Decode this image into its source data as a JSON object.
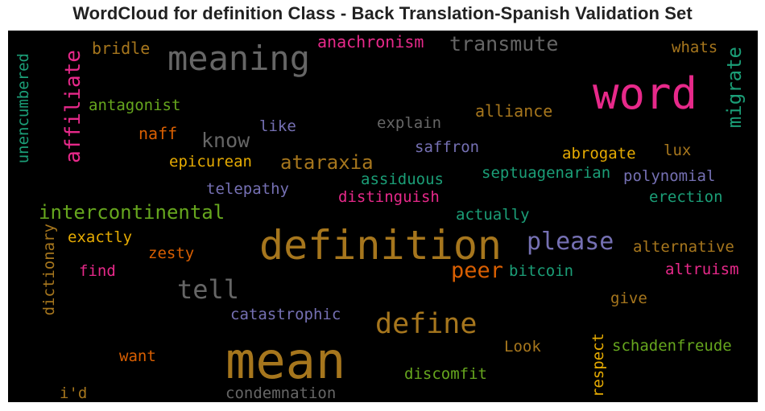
{
  "chart_data": {
    "type": "wordcloud",
    "title": "WordCloud for definition Class - Back Translation-Spanish Validation Set",
    "background": "#000000",
    "words": [
      {
        "text": "definition",
        "color": "#a6761d"
      },
      {
        "text": "mean",
        "color": "#a6761d"
      },
      {
        "text": "word",
        "color": "#e7298a"
      },
      {
        "text": "meaning",
        "color": "#666666"
      },
      {
        "text": "define",
        "color": "#a6761d"
      },
      {
        "text": "please",
        "color": "#7570b3"
      },
      {
        "text": "tell",
        "color": "#666666"
      },
      {
        "text": "transmute",
        "color": "#666666"
      },
      {
        "text": "intercontinental",
        "color": "#66a61e"
      },
      {
        "text": "ataraxia",
        "color": "#a6761d"
      },
      {
        "text": "know",
        "color": "#666666"
      },
      {
        "text": "affiliate",
        "color": "#e7298a"
      },
      {
        "text": "migrate",
        "color": "#1b9e77"
      },
      {
        "text": "peer",
        "color": "#d95f02"
      },
      {
        "text": "anachronism",
        "color": "#e7298a"
      },
      {
        "text": "bridle",
        "color": "#a6761d"
      },
      {
        "text": "whats",
        "color": "#a6761d"
      },
      {
        "text": "unencumbered",
        "color": "#1b9e77"
      },
      {
        "text": "antagonist",
        "color": "#66a61e"
      },
      {
        "text": "alliance",
        "color": "#a6761d"
      },
      {
        "text": "explain",
        "color": "#666666"
      },
      {
        "text": "like",
        "color": "#7570b3"
      },
      {
        "text": "naff",
        "color": "#d95f02"
      },
      {
        "text": "saffron",
        "color": "#7570b3"
      },
      {
        "text": "abrogate",
        "color": "#e6ab02"
      },
      {
        "text": "lux",
        "color": "#a6761d"
      },
      {
        "text": "epicurean",
        "color": "#e6ab02"
      },
      {
        "text": "assiduous",
        "color": "#1b9e77"
      },
      {
        "text": "septuagenarian",
        "color": "#1b9e77"
      },
      {
        "text": "polynomial",
        "color": "#7570b3"
      },
      {
        "text": "telepathy",
        "color": "#7570b3"
      },
      {
        "text": "distinguish",
        "color": "#e7298a"
      },
      {
        "text": "erection",
        "color": "#1b9e77"
      },
      {
        "text": "actually",
        "color": "#1b9e77"
      },
      {
        "text": "exactly",
        "color": "#e6ab02"
      },
      {
        "text": "dictionary",
        "color": "#a6761d"
      },
      {
        "text": "alternative",
        "color": "#a6761d"
      },
      {
        "text": "zesty",
        "color": "#d95f02"
      },
      {
        "text": "find",
        "color": "#e7298a"
      },
      {
        "text": "bitcoin",
        "color": "#1b9e77"
      },
      {
        "text": "altruism",
        "color": "#e7298a"
      },
      {
        "text": "give",
        "color": "#a6761d"
      },
      {
        "text": "catastrophic",
        "color": "#7570b3"
      },
      {
        "text": "respect",
        "color": "#e6ab02"
      },
      {
        "text": "Look",
        "color": "#a6761d"
      },
      {
        "text": "schadenfreude",
        "color": "#66a61e"
      },
      {
        "text": "want",
        "color": "#d95f02"
      },
      {
        "text": "discomfit",
        "color": "#66a61e"
      },
      {
        "text": "i'd",
        "color": "#a6761d"
      },
      {
        "text": "condemnation",
        "color": "#666666"
      }
    ]
  }
}
